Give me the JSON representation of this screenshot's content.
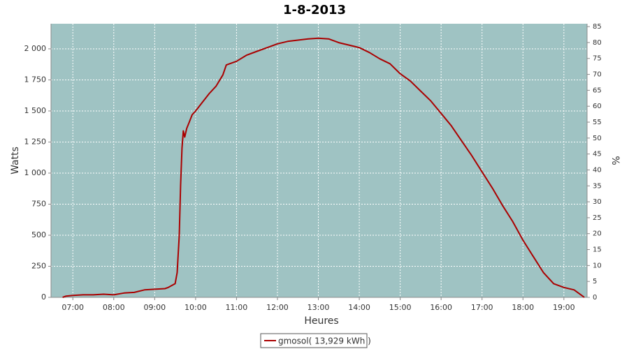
{
  "chart_data": {
    "type": "line",
    "title": "1-8-2013",
    "x_label": "Heures",
    "y_label": "Watts",
    "y2_label": "%",
    "x": [
      405,
      410,
      420,
      435,
      450,
      465,
      480,
      495,
      510,
      525,
      540,
      555,
      560,
      570,
      573,
      576,
      578,
      580,
      582,
      584,
      587,
      590,
      595,
      600,
      610,
      620,
      630,
      640,
      645,
      660,
      675,
      690,
      705,
      720,
      735,
      750,
      765,
      780,
      795,
      810,
      825,
      840,
      855,
      870,
      885,
      900,
      915,
      930,
      945,
      960,
      975,
      990,
      1005,
      1020,
      1035,
      1050,
      1065,
      1080,
      1095,
      1110,
      1125,
      1140,
      1155,
      1165,
      1170
    ],
    "series": [
      {
        "name": "gmosol( 13,929 kWh )",
        "color": "#aa0000",
        "values": [
          0,
          10,
          15,
          20,
          20,
          25,
          20,
          35,
          40,
          60,
          65,
          70,
          80,
          110,
          200,
          500,
          900,
          1200,
          1340,
          1290,
          1360,
          1400,
          1470,
          1500,
          1570,
          1640,
          1700,
          1790,
          1870,
          1900,
          1950,
          1980,
          2010,
          2040,
          2060,
          2070,
          2080,
          2085,
          2080,
          2050,
          2030,
          2010,
          1970,
          1920,
          1880,
          1800,
          1740,
          1660,
          1580,
          1480,
          1380,
          1260,
          1140,
          1010,
          880,
          740,
          610,
          460,
          330,
          200,
          110,
          80,
          60,
          20,
          0
        ]
      }
    ],
    "xlim": [
      388,
      1174
    ],
    "xticks": [
      {
        "value": 420,
        "label": "07:00"
      },
      {
        "value": 480,
        "label": "08:00"
      },
      {
        "value": 540,
        "label": "09:00"
      },
      {
        "value": 600,
        "label": "10:00"
      },
      {
        "value": 660,
        "label": "11:00"
      },
      {
        "value": 720,
        "label": "12:00"
      },
      {
        "value": 780,
        "label": "13:00"
      },
      {
        "value": 840,
        "label": "14:00"
      },
      {
        "value": 900,
        "label": "15:00"
      },
      {
        "value": 960,
        "label": "16:00"
      },
      {
        "value": 1020,
        "label": "17:00"
      },
      {
        "value": 1080,
        "label": "18:00"
      },
      {
        "value": 1140,
        "label": "19:00"
      }
    ],
    "ylim": [
      0,
      2202
    ],
    "yticks": [
      0,
      250,
      500,
      750,
      {
        "value": 1000,
        "label": "1 000"
      },
      {
        "value": 1250,
        "label": "1 250"
      },
      {
        "value": 1500,
        "label": "1 500"
      },
      {
        "value": 1750,
        "label": "1 750"
      },
      {
        "value": 2000,
        "label": "2 000"
      }
    ],
    "y2lim": [
      0,
      85.9
    ],
    "y2ticks": [
      0,
      5,
      10,
      15,
      20,
      25,
      30,
      35,
      40,
      45,
      50,
      55,
      60,
      65,
      70,
      75,
      80,
      85
    ],
    "grid": true,
    "plot_background": "#9fc3c3"
  }
}
